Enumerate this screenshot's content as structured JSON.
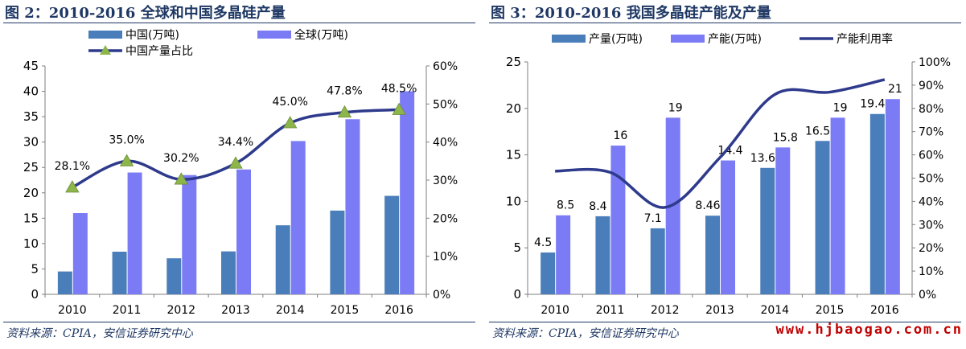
{
  "colors": {
    "dark_bar": "#4a7ebb",
    "light_bar": "#7b7bf5",
    "line": "#2e3a8c",
    "marker": "#8cb54a",
    "title": "#1f3864",
    "watermark": "#c00000"
  },
  "watermark": "www.hjbaogao.com.cn",
  "charts": [
    {
      "title": "图 2：2010-2016 全球和中国多晶硅产量",
      "source": "资料来源：CPIA，安信证券研究中心"
    },
    {
      "title": "图 3：2010-2016 我国多晶硅产能及产量",
      "source": "资料来源：CPIA，安信证券研究中心"
    }
  ],
  "chart_data": [
    {
      "type": "bar",
      "categories": [
        "2010",
        "2011",
        "2012",
        "2013",
        "2014",
        "2015",
        "2016"
      ],
      "series": [
        {
          "name": "中国(万吨)",
          "axis": "left",
          "kind": "bar",
          "color_key": "dark_bar",
          "values": [
            4.5,
            8.4,
            7.1,
            8.46,
            13.6,
            16.5,
            19.4
          ]
        },
        {
          "name": "全球(万吨)",
          "axis": "left",
          "kind": "bar",
          "color_key": "light_bar",
          "values": [
            16,
            24,
            23.5,
            24.6,
            30.2,
            34.5,
            40
          ]
        },
        {
          "name": "中国产量占比",
          "axis": "right",
          "kind": "line-marker",
          "color_key": "line",
          "values": [
            28.1,
            35.0,
            30.2,
            34.4,
            45.0,
            47.8,
            48.5
          ],
          "labels": [
            "28.1%",
            "35.0%",
            "30.2%",
            "34.4%",
            "45.0%",
            "47.8%",
            "48.5%"
          ]
        }
      ],
      "y_left": {
        "min": 0,
        "max": 45,
        "step": 5,
        "ticks": [
          "0",
          "5",
          "10",
          "15",
          "20",
          "25",
          "30",
          "35",
          "40",
          "45"
        ]
      },
      "y_right": {
        "min": 0,
        "max": 60,
        "step": 10,
        "ticks": [
          "0%",
          "10%",
          "20%",
          "30%",
          "40%",
          "50%",
          "60%"
        ]
      },
      "grid": false,
      "legend_position": "top"
    },
    {
      "type": "bar",
      "categories": [
        "2010",
        "2011",
        "2012",
        "2013",
        "2014",
        "2015",
        "2016"
      ],
      "series": [
        {
          "name": "产量(万吨)",
          "axis": "left",
          "kind": "bar",
          "color_key": "dark_bar",
          "values": [
            4.5,
            8.4,
            7.1,
            8.46,
            13.6,
            16.5,
            19.4
          ],
          "labels": [
            "4.5",
            "8.4",
            "7.1",
            "8.46",
            "13.6",
            "16.5",
            "19.4"
          ]
        },
        {
          "name": "产能(万吨)",
          "axis": "left",
          "kind": "bar",
          "color_key": "light_bar",
          "values": [
            8.5,
            16,
            19,
            14.4,
            15.8,
            19,
            21
          ],
          "labels": [
            "8.5",
            "16",
            "19",
            "14.4",
            "15.8",
            "19",
            "21"
          ]
        },
        {
          "name": "产能利用率",
          "axis": "right",
          "kind": "line",
          "color_key": "line",
          "values": [
            53,
            52.5,
            37.4,
            58.8,
            86,
            87,
            92.4
          ]
        }
      ],
      "y_left": {
        "min": 0,
        "max": 25,
        "step": 5,
        "ticks": [
          "0",
          "5",
          "10",
          "15",
          "20",
          "25"
        ]
      },
      "y_right": {
        "min": 0,
        "max": 100,
        "step": 10,
        "ticks": [
          "0%",
          "10%",
          "20%",
          "30%",
          "40%",
          "50%",
          "60%",
          "70%",
          "80%",
          "90%",
          "100%"
        ]
      },
      "grid": false,
      "legend_position": "top"
    }
  ]
}
